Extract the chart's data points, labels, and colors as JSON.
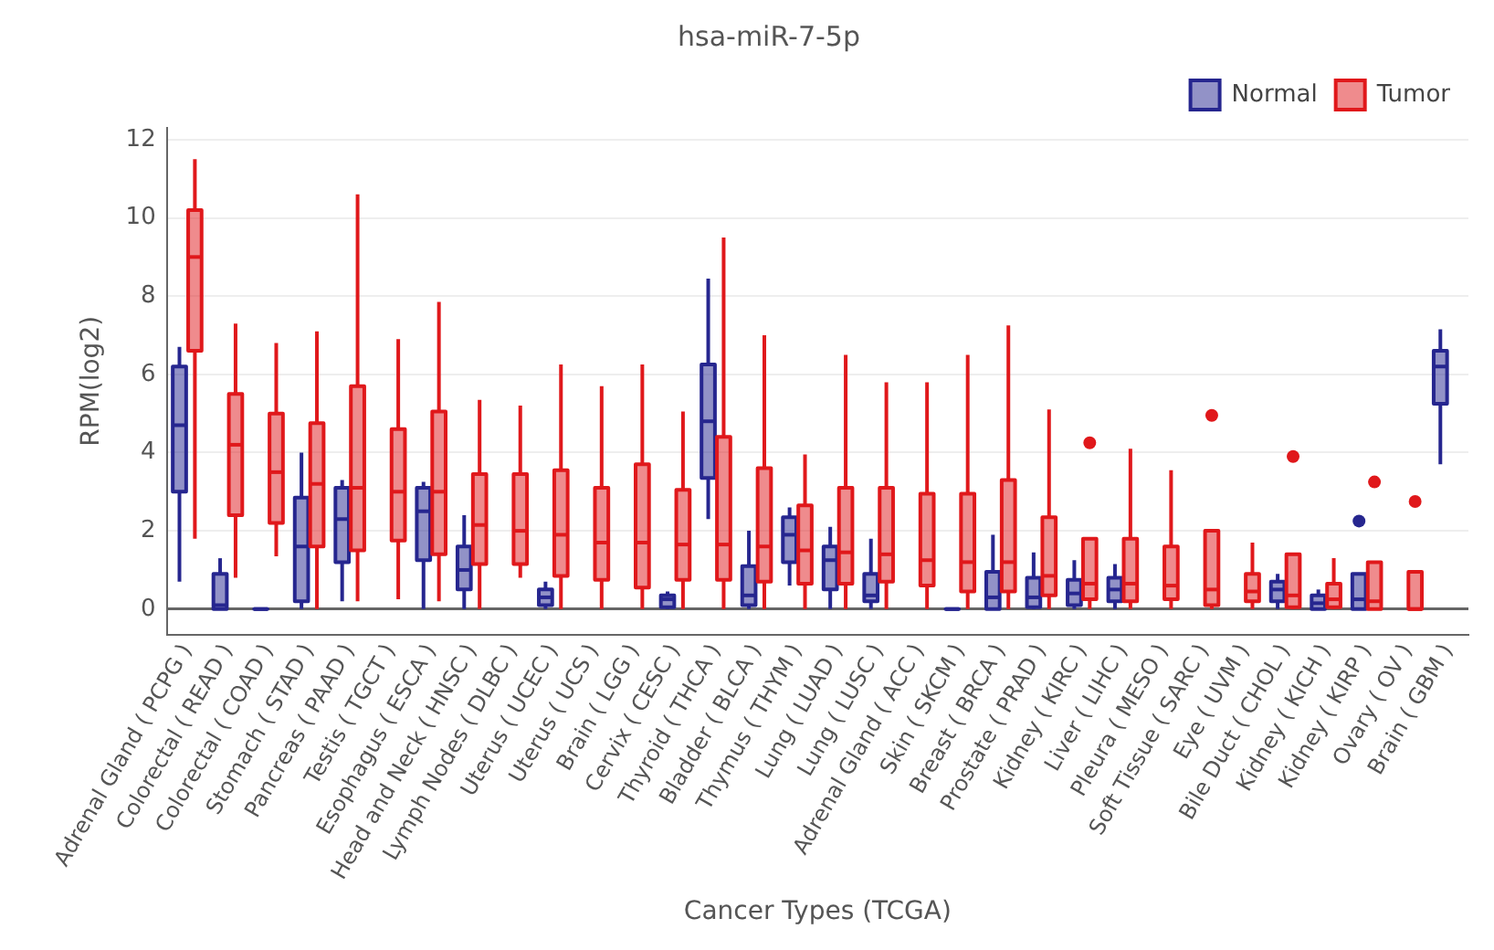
{
  "chart_data": {
    "type": "box",
    "title": "hsa-miR-7-5p",
    "xlabel": "Cancer Types (TCGA)",
    "ylabel": "RPM(log2)",
    "categories": [
      "Adrenal Gland ( PCPG )",
      "Colorectal ( READ )",
      "Colorectal ( COAD )",
      "Stomach ( STAD )",
      "Pancreas ( PAAD )",
      "Testis ( TGCT )",
      "Esophagus ( ESCA )",
      "Head and Neck ( HNSC )",
      "Lymph Nodes ( DLBC )",
      "Uterus ( UCEC )",
      "Uterus ( UCS )",
      "Brain ( LGG )",
      "Cervix ( CESC )",
      "Thyroid ( THCA )",
      "Bladder ( BLCA )",
      "Thymus ( THYM )",
      "Lung ( LUAD )",
      "Lung ( LUSC )",
      "Adrenal Gland ( ACC )",
      "Skin ( SKCM )",
      "Breast ( BRCA )",
      "Prostate ( PRAD )",
      "Kidney ( KIRC )",
      "Liver ( LIHC )",
      "Pleura ( MESO )",
      "Soft Tissue ( SARC )",
      "Eye ( UVM )",
      "Bile Duct ( CHOL )",
      "Kidney ( KICH )",
      "Kidney ( KIRP )",
      "Ovary ( OV )",
      "Brain ( GBM )"
    ],
    "ylim": [
      -0.65,
      12.3
    ],
    "yticks": [
      0,
      2,
      4,
      6,
      8,
      10,
      12
    ],
    "grid": "y",
    "legend": "top right",
    "series": [
      {
        "name": "Normal",
        "color": "#26268f",
        "boxes": [
          {
            "low": 0.7,
            "q1": 3.0,
            "median": 4.7,
            "q3": 6.2,
            "high": 6.7
          },
          {
            "low": 0,
            "q1": 0,
            "median": 0.1,
            "q3": 0.9,
            "high": 1.3
          },
          {
            "low": 0,
            "q1": 0,
            "median": 0,
            "q3": 0,
            "high": 0
          },
          {
            "low": 0,
            "q1": 0.2,
            "median": 1.6,
            "q3": 2.85,
            "high": 4.0
          },
          {
            "low": 0.2,
            "q1": 1.2,
            "median": 2.3,
            "q3": 3.1,
            "high": 3.3
          },
          null,
          {
            "low": 0,
            "q1": 1.25,
            "median": 2.5,
            "q3": 3.1,
            "high": 3.25
          },
          {
            "low": 0,
            "q1": 0.5,
            "median": 1.0,
            "q3": 1.6,
            "high": 2.4
          },
          null,
          {
            "low": 0,
            "q1": 0.1,
            "median": 0.3,
            "q3": 0.5,
            "high": 0.7
          },
          null,
          null,
          {
            "low": 0,
            "q1": 0.05,
            "median": 0.25,
            "q3": 0.35,
            "high": 0.45
          },
          {
            "low": 2.3,
            "q1": 3.35,
            "median": 4.8,
            "q3": 6.25,
            "high": 8.45
          },
          {
            "low": 0,
            "q1": 0.1,
            "median": 0.35,
            "q3": 1.1,
            "high": 2.0
          },
          {
            "low": 0.6,
            "q1": 1.2,
            "median": 1.9,
            "q3": 2.35,
            "high": 2.6
          },
          {
            "low": 0,
            "q1": 0.5,
            "median": 1.25,
            "q3": 1.6,
            "high": 2.1
          },
          {
            "low": 0,
            "q1": 0.2,
            "median": 0.35,
            "q3": 0.9,
            "high": 1.8
          },
          null,
          {
            "low": 0,
            "q1": 0,
            "median": 0,
            "q3": 0,
            "high": 0
          },
          {
            "low": 0,
            "q1": 0,
            "median": 0.3,
            "q3": 0.95,
            "high": 1.9
          },
          {
            "low": 0,
            "q1": 0.05,
            "median": 0.3,
            "q3": 0.8,
            "high": 1.45
          },
          {
            "low": 0,
            "q1": 0.1,
            "median": 0.4,
            "q3": 0.75,
            "high": 1.25
          },
          {
            "low": 0,
            "q1": 0.2,
            "median": 0.5,
            "q3": 0.8,
            "high": 1.15
          },
          null,
          null,
          null,
          {
            "low": 0,
            "q1": 0.2,
            "median": 0.5,
            "q3": 0.7,
            "high": 0.9
          },
          {
            "low": 0,
            "q1": 0,
            "median": 0.15,
            "q3": 0.35,
            "high": 0.5
          },
          {
            "low": 0,
            "q1": 0,
            "median": 0.25,
            "q3": 0.9,
            "high": 0.9,
            "outliers": [
              2.25
            ]
          },
          null,
          {
            "low": 3.7,
            "q1": 5.25,
            "median": 6.2,
            "q3": 6.6,
            "high": 7.15
          }
        ]
      },
      {
        "name": "Tumor",
        "color": "#e0181b",
        "boxes": [
          {
            "low": 1.8,
            "q1": 6.6,
            "median": 9.0,
            "q3": 10.2,
            "high": 11.5
          },
          {
            "low": 0.8,
            "q1": 2.4,
            "median": 4.2,
            "q3": 5.5,
            "high": 7.3
          },
          {
            "low": 1.35,
            "q1": 2.2,
            "median": 3.5,
            "q3": 5.0,
            "high": 6.8
          },
          {
            "low": 0,
            "q1": 1.6,
            "median": 3.2,
            "q3": 4.75,
            "high": 7.1
          },
          {
            "low": 0.2,
            "q1": 1.5,
            "median": 3.1,
            "q3": 5.7,
            "high": 10.6
          },
          {
            "low": 0.25,
            "q1": 1.75,
            "median": 3.0,
            "q3": 4.6,
            "high": 6.9
          },
          {
            "low": 0.2,
            "q1": 1.4,
            "median": 3.0,
            "q3": 5.05,
            "high": 7.85
          },
          {
            "low": 0,
            "q1": 1.15,
            "median": 2.15,
            "q3": 3.45,
            "high": 5.35
          },
          {
            "low": 0.8,
            "q1": 1.15,
            "median": 2.0,
            "q3": 3.45,
            "high": 5.2
          },
          {
            "low": 0,
            "q1": 0.85,
            "median": 1.9,
            "q3": 3.55,
            "high": 6.25
          },
          {
            "low": 0,
            "q1": 0.75,
            "median": 1.7,
            "q3": 3.1,
            "high": 5.7
          },
          {
            "low": 0,
            "q1": 0.55,
            "median": 1.7,
            "q3": 3.7,
            "high": 6.25
          },
          {
            "low": 0,
            "q1": 0.75,
            "median": 1.65,
            "q3": 3.05,
            "high": 5.05
          },
          {
            "low": 0,
            "q1": 0.75,
            "median": 1.65,
            "q3": 4.4,
            "high": 9.5
          },
          {
            "low": 0,
            "q1": 0.7,
            "median": 1.6,
            "q3": 3.6,
            "high": 7.0
          },
          {
            "low": 0,
            "q1": 0.65,
            "median": 1.5,
            "q3": 2.65,
            "high": 3.95
          },
          {
            "low": 0,
            "q1": 0.65,
            "median": 1.45,
            "q3": 3.1,
            "high": 6.5
          },
          {
            "low": 0,
            "q1": 0.7,
            "median": 1.4,
            "q3": 3.1,
            "high": 5.8
          },
          {
            "low": 0,
            "q1": 0.6,
            "median": 1.25,
            "q3": 2.95,
            "high": 5.8
          },
          {
            "low": 0,
            "q1": 0.45,
            "median": 1.2,
            "q3": 2.95,
            "high": 6.5
          },
          {
            "low": 0,
            "q1": 0.45,
            "median": 1.2,
            "q3": 3.3,
            "high": 7.25
          },
          {
            "low": 0,
            "q1": 0.35,
            "median": 0.85,
            "q3": 2.35,
            "high": 5.1
          },
          {
            "low": 0,
            "q1": 0.25,
            "median": 0.65,
            "q3": 1.8,
            "high": 1.8,
            "outliers": [
              4.25
            ]
          },
          {
            "low": 0,
            "q1": 0.2,
            "median": 0.65,
            "q3": 1.8,
            "high": 4.1
          },
          {
            "low": 0,
            "q1": 0.25,
            "median": 0.6,
            "q3": 1.6,
            "high": 3.55
          },
          {
            "low": 0,
            "q1": 0.1,
            "median": 0.5,
            "q3": 2.0,
            "high": 2.0,
            "outliers": [
              4.95
            ]
          },
          {
            "low": 0,
            "q1": 0.2,
            "median": 0.45,
            "q3": 0.9,
            "high": 1.7
          },
          {
            "low": 0,
            "q1": 0.05,
            "median": 0.35,
            "q3": 1.4,
            "high": 1.4,
            "outliers": [
              3.9
            ]
          },
          {
            "low": 0,
            "q1": 0.05,
            "median": 0.25,
            "q3": 0.65,
            "high": 1.3
          },
          {
            "low": 0,
            "q1": 0,
            "median": 0.2,
            "q3": 1.2,
            "high": 1.2,
            "outliers": [
              3.25
            ]
          },
          {
            "low": 0,
            "q1": 0,
            "median": 0,
            "q3": 0.95,
            "high": 0.95,
            "outliers": [
              2.75
            ]
          },
          null
        ]
      }
    ]
  }
}
